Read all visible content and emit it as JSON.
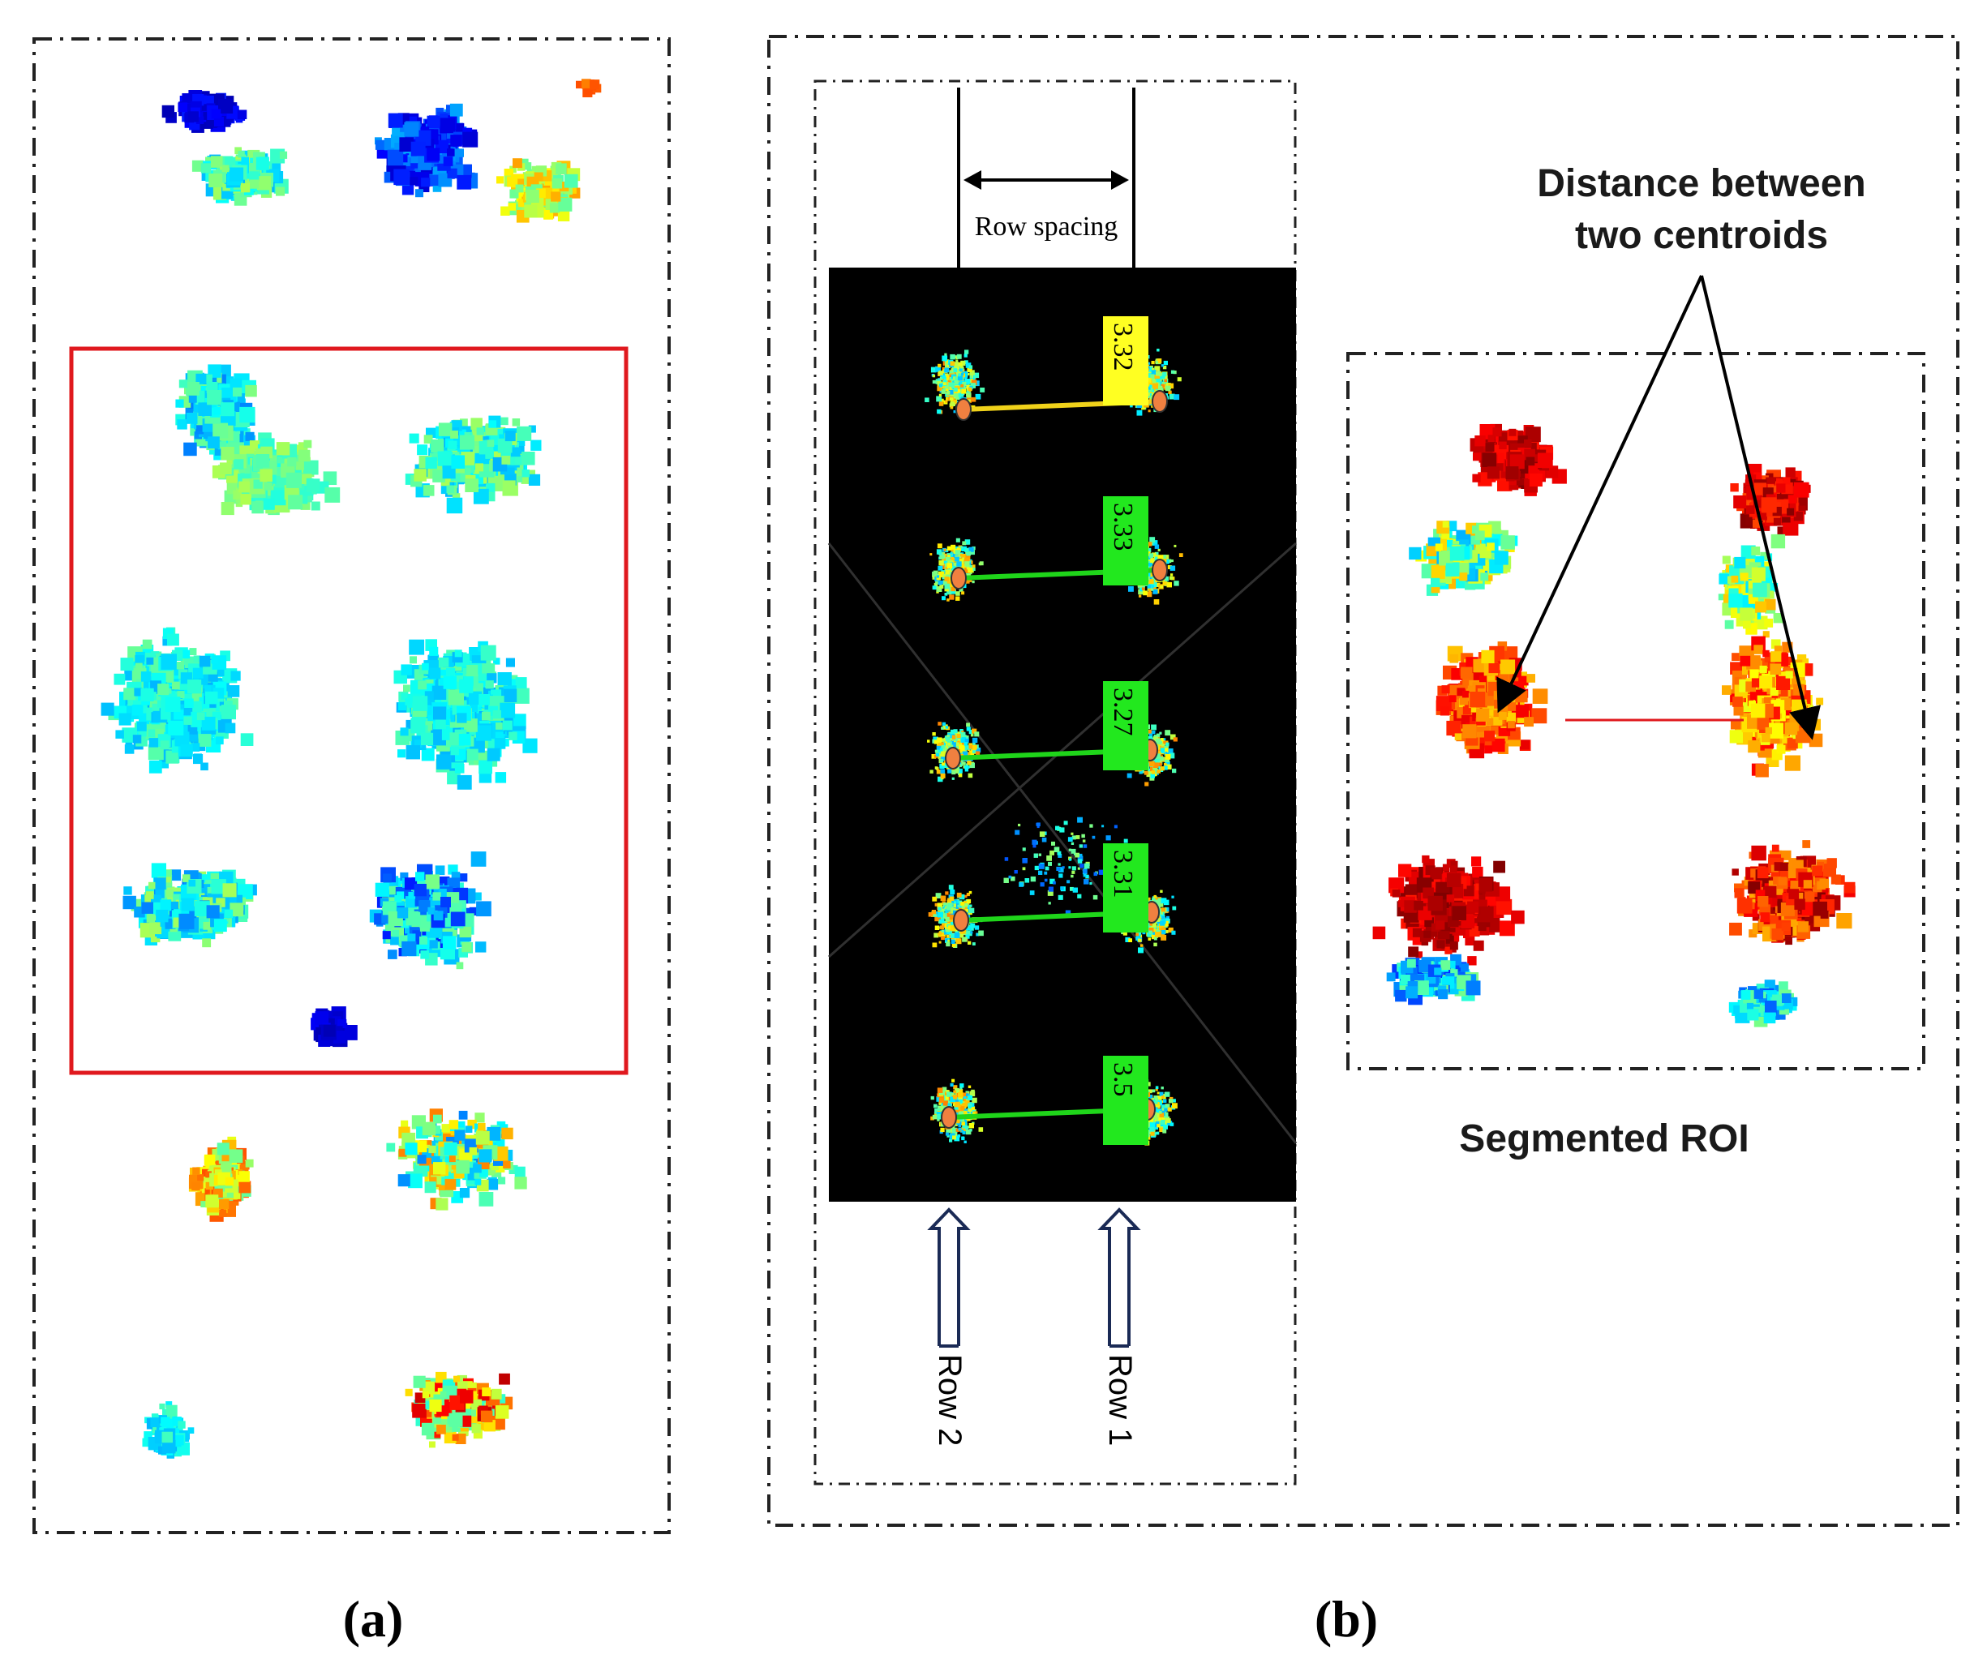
{
  "panel_a": {
    "caption": "(a)"
  },
  "panel_b": {
    "caption": "(b)",
    "row_spacing_label": "Row spacing",
    "row_labels": [
      "Row 2",
      "Row 1"
    ],
    "distances": [
      "3.32",
      "3.33",
      "3.27",
      "3.31",
      "3.5"
    ],
    "distance_label_line1": "Distance between",
    "distance_label_line2": "two centroids",
    "segmented_roi_label": "Segmented ROI"
  },
  "colors": {
    "roi_box": "#e0191e",
    "black_panel": "#000000",
    "yellow_tag": "#ffff22",
    "green_tag": "#22e81e",
    "centroid": "#f08040"
  },
  "colormap": "jet"
}
